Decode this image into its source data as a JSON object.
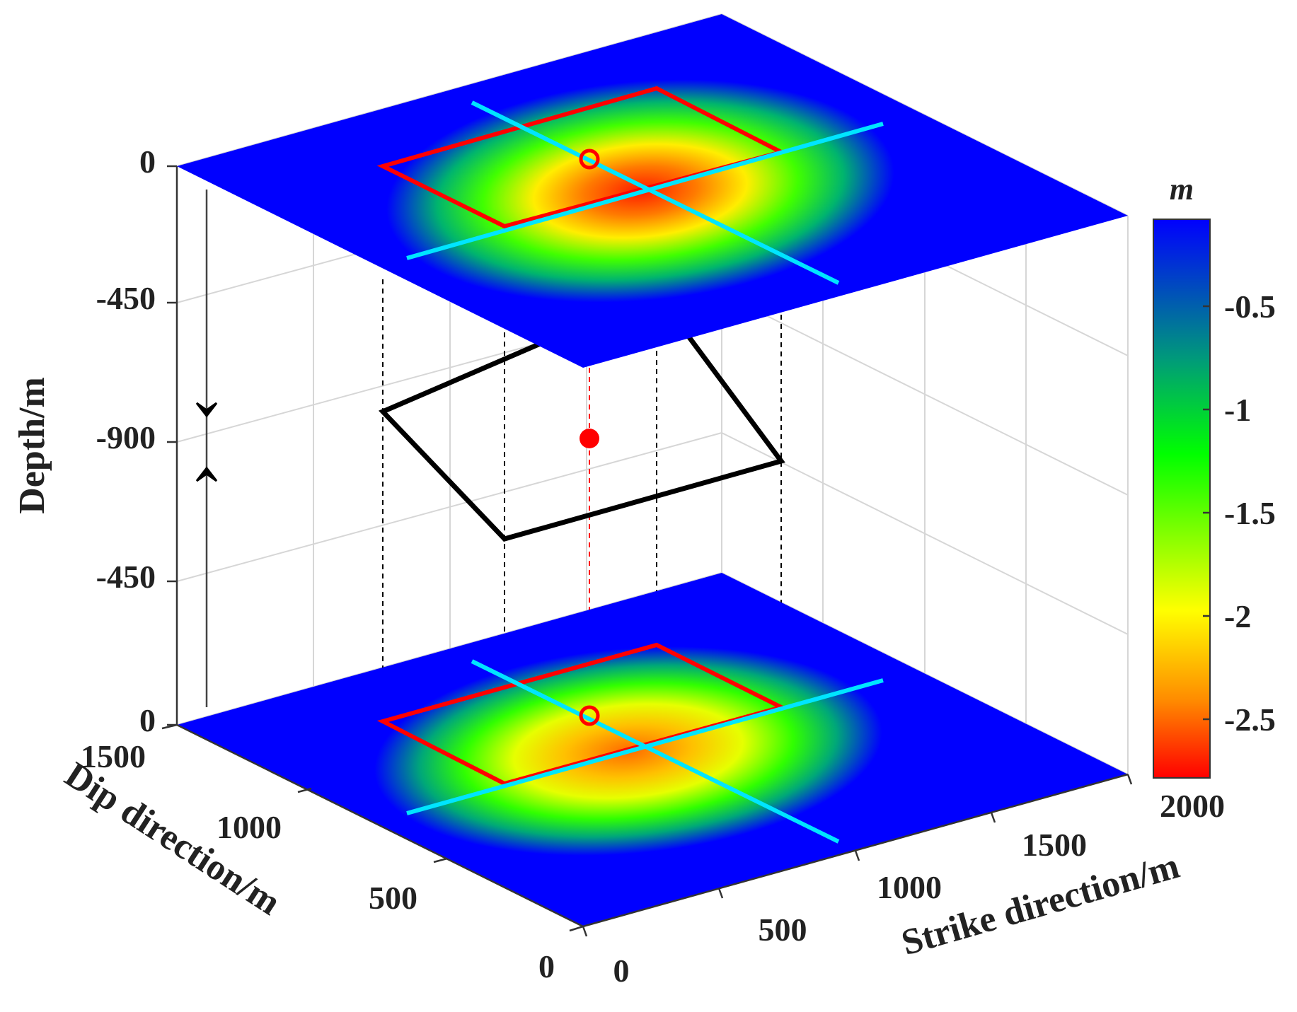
{
  "chart_data": {
    "type": "3d-surface",
    "xlabel": "Strike direction/m",
    "ylabel": "Dip direction/m",
    "zlabel": "Depth/m",
    "x_ticks": [
      "0",
      "500",
      "1000",
      "1500",
      "2000"
    ],
    "y_ticks": [
      "0",
      "500",
      "1000",
      "1500"
    ],
    "z_ticks": [
      "0",
      "-450",
      "-900",
      "-450",
      "0"
    ],
    "xlim": [
      0,
      2000
    ],
    "ylim": [
      0,
      1500
    ],
    "colorbar": {
      "title": "m",
      "ticks": [
        "-0.5",
        "-1",
        "-1.5",
        "-2",
        "-2.5"
      ],
      "tick_values": [
        -0.5,
        -1,
        -1.5,
        -2,
        -2.5
      ],
      "range": [
        -2.75,
        -0.05
      ],
      "colormap": [
        "#ff0000",
        "#ffff00",
        "#00ff00",
        "#0000ff"
      ]
    },
    "surfaces": [
      {
        "name": "top",
        "min_value": -2.7,
        "center": [
          1000,
          850
        ]
      },
      {
        "name": "bottom",
        "min_value": -2.4,
        "center": [
          1000,
          750
        ]
      }
    ],
    "colors": {
      "fault_outline": "#000000",
      "projection_outline": "#ff0000",
      "profile_lines": "#00e5ff",
      "source_point": "#ff0000"
    }
  }
}
